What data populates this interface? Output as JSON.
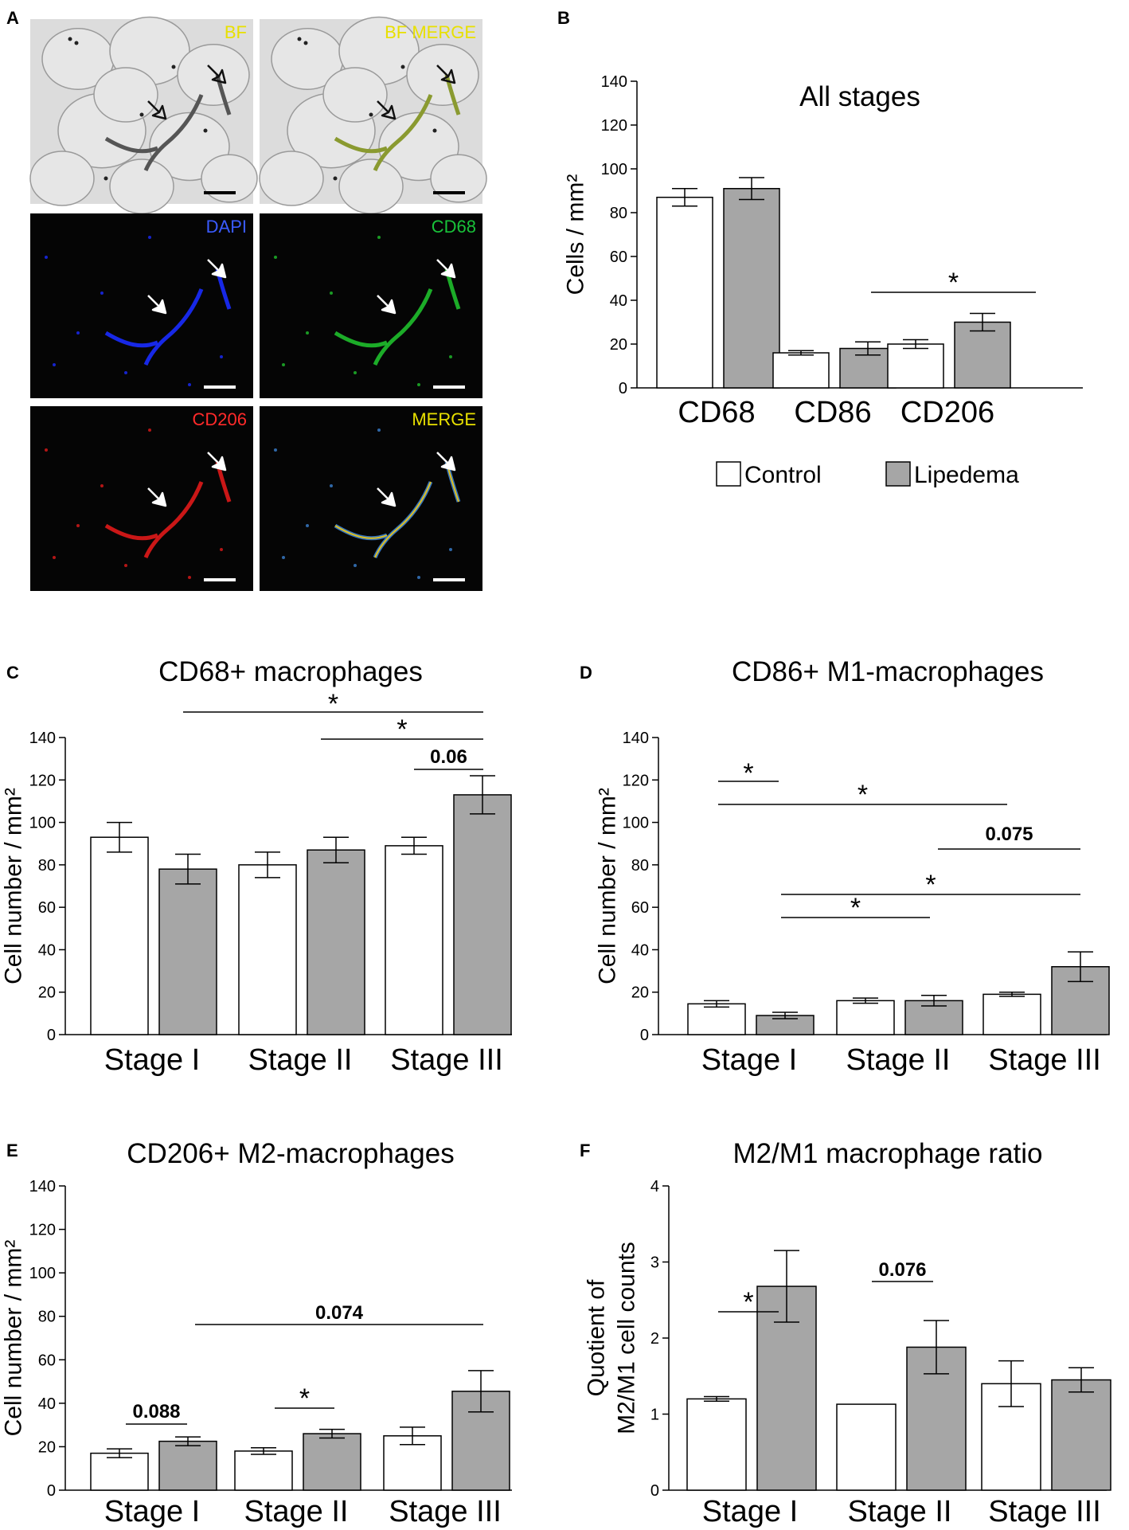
{
  "figure": {
    "panel_letters": [
      "A",
      "B",
      "C",
      "D",
      "E",
      "F"
    ],
    "micrographs": [
      {
        "label": "BF",
        "label_color": "#e8e000",
        "kind": "bf"
      },
      {
        "label": "BF MERGE",
        "label_color": "#e8e000",
        "kind": "bfmerge"
      },
      {
        "label": "DAPI",
        "label_color": "#3a5bff",
        "kind": "dapi"
      },
      {
        "label": "CD68",
        "label_color": "#19c23a",
        "kind": "cd68"
      },
      {
        "label": "CD206",
        "label_color": "#ff2a2a",
        "kind": "cd206"
      },
      {
        "label": "MERGE",
        "label_color": "#e8e000",
        "kind": "merge"
      }
    ],
    "legend": {
      "control": "Control",
      "lipedema": "Lipedema"
    },
    "colors": {
      "control": "#ffffff",
      "lipedema": "#a6a6a6",
      "axis": "#000000"
    }
  },
  "chart_data": [
    {
      "id": "B",
      "type": "bar",
      "title": "All stages",
      "ylabel": "Cells / mm²",
      "ylim": [
        0,
        140
      ],
      "yticks": [
        0,
        20,
        40,
        60,
        80,
        100,
        120,
        140
      ],
      "categories": [
        "CD68",
        "CD86",
        "CD206"
      ],
      "series": [
        {
          "name": "Control",
          "values": [
            87,
            16,
            20
          ],
          "errors": [
            4,
            1,
            2
          ]
        },
        {
          "name": "Lipedema",
          "values": [
            91,
            18,
            30
          ],
          "errors": [
            5,
            3,
            4
          ]
        }
      ],
      "annotations": [
        {
          "text": "*",
          "bold": false
        }
      ]
    },
    {
      "id": "C",
      "type": "bar",
      "title": "CD68+ macrophages",
      "ylabel": "Cell number / mm²",
      "ylim": [
        0,
        140
      ],
      "yticks": [
        0,
        20,
        40,
        60,
        80,
        100,
        120,
        140
      ],
      "categories": [
        "Stage I",
        "Stage II",
        "Stage III"
      ],
      "series": [
        {
          "name": "Control",
          "values": [
            93,
            80,
            89
          ],
          "errors": [
            7,
            6,
            4
          ]
        },
        {
          "name": "Lipedema",
          "values": [
            78,
            87,
            113
          ],
          "errors": [
            7,
            6,
            9
          ]
        }
      ],
      "annotations": [
        {
          "text": "*",
          "bold": false
        },
        {
          "text": "*",
          "bold": false
        },
        {
          "text": "0.06",
          "bold": true
        }
      ]
    },
    {
      "id": "D",
      "type": "bar",
      "title": "CD86+ M1-macrophages",
      "ylabel": "Cell number / mm²",
      "ylim": [
        0,
        140
      ],
      "yticks": [
        0,
        20,
        40,
        60,
        80,
        100,
        120,
        140
      ],
      "categories": [
        "Stage I",
        "Stage II",
        "Stage III"
      ],
      "series": [
        {
          "name": "Control",
          "values": [
            14.5,
            16,
            19
          ],
          "errors": [
            1.5,
            1.2,
            1
          ]
        },
        {
          "name": "Lipedema",
          "values": [
            9,
            16,
            32
          ],
          "errors": [
            1.5,
            2.5,
            7
          ]
        }
      ],
      "annotations": [
        {
          "text": "*",
          "bold": false
        },
        {
          "text": "*",
          "bold": false
        },
        {
          "text": "0.075",
          "bold": true
        },
        {
          "text": "*",
          "bold": false
        },
        {
          "text": "*",
          "bold": false
        }
      ]
    },
    {
      "id": "E",
      "type": "bar",
      "title": "CD206+ M2-macrophages",
      "ylabel": "Cell number / mm²",
      "ylim": [
        0,
        140
      ],
      "yticks": [
        0,
        20,
        40,
        60,
        80,
        100,
        120,
        140
      ],
      "categories": [
        "Stage I",
        "Stage II",
        "Stage III"
      ],
      "series": [
        {
          "name": "Control",
          "values": [
            17,
            18,
            25
          ],
          "errors": [
            2,
            1.5,
            4
          ]
        },
        {
          "name": "Lipedema",
          "values": [
            22.5,
            26,
            45.5
          ],
          "errors": [
            2,
            2,
            9.5
          ]
        }
      ],
      "annotations": [
        {
          "text": "0.088",
          "bold": true
        },
        {
          "text": "*",
          "bold": false
        },
        {
          "text": "0.074",
          "bold": true
        }
      ]
    },
    {
      "id": "F",
      "type": "bar",
      "title": "M2/M1 macrophage ratio",
      "ylabel": [
        "Quotient of",
        "M2/M1 cell counts"
      ],
      "ylim": [
        0,
        4
      ],
      "yticks": [
        0,
        1,
        2,
        3,
        4
      ],
      "categories": [
        "Stage I",
        "Stage II",
        "Stage III"
      ],
      "series": [
        {
          "name": "Control",
          "values": [
            1.2,
            1.13,
            1.4
          ],
          "errors": [
            0.03,
            0,
            0.3
          ]
        },
        {
          "name": "Lipedema",
          "values": [
            2.68,
            1.88,
            1.45
          ],
          "errors": [
            0.47,
            0.35,
            0.16
          ]
        }
      ],
      "annotations": [
        {
          "text": "*",
          "bold": false
        },
        {
          "text": "0.076",
          "bold": true
        }
      ]
    }
  ]
}
